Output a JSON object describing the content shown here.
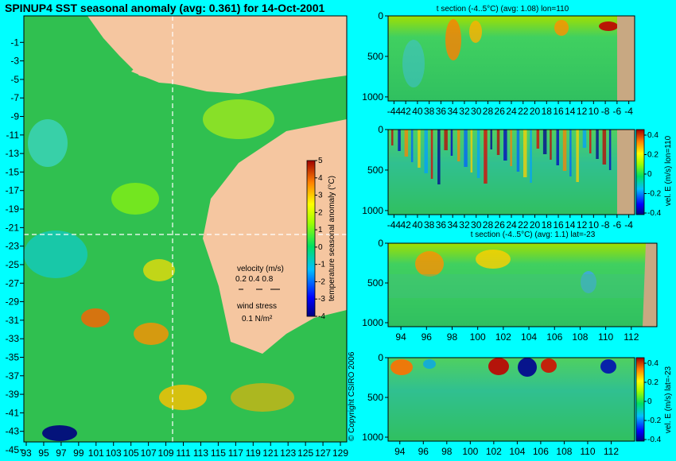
{
  "page": {
    "background": "#00ffff",
    "land_color": "#f5c6a0",
    "panel_land_color": "#c8a882",
    "copyright": "© Copyright CSIRO 2006"
  },
  "chart_data": [
    {
      "type": "heatmap",
      "title": "SPINUP4 SST seasonal anomaly (avg: 0.361) for 14-Oct-2001",
      "x_ticks": [
        "93",
        "95",
        "97",
        "99",
        "101",
        "103",
        "105",
        "107",
        "109",
        "111",
        "113",
        "115",
        "117",
        "119",
        "121",
        "123",
        "125",
        "127",
        "129"
      ],
      "y_ticks": [
        "-1",
        "-3",
        "-5",
        "-7",
        "-9",
        "-11",
        "-13",
        "-15",
        "-17",
        "-19",
        "-21",
        "-23",
        "-25",
        "-27",
        "-29",
        "-31",
        "-33",
        "-35",
        "-37",
        "-39",
        "-41",
        "-43",
        "-45"
      ],
      "xlim": [
        93,
        130
      ],
      "ylim": [
        -45,
        1
      ],
      "section_lon": 110,
      "section_lat": -23,
      "colorbar": {
        "label": "temperature seasonal anomaly (°C)",
        "ticks": [
          "5",
          "4",
          "3",
          "2",
          "1",
          "0",
          "-1",
          "-2",
          "-3",
          "-4"
        ],
        "range": [
          -4,
          5
        ]
      },
      "legend": {
        "velocity_label": "velocity (m/s)",
        "velocity_scale": "0.2 0.4 0.8",
        "wind_label": "wind stress",
        "wind_scale": "0.1 N/m²"
      }
    },
    {
      "type": "heatmap",
      "title": "t section (-4..5°C) (avg: 1.08) lon=110",
      "x_ticks": [
        "-44",
        "42",
        "40",
        "38",
        "36",
        "34",
        "32",
        "30",
        "28",
        "26",
        "24",
        "22",
        "20",
        "18",
        "16",
        "14",
        "12",
        "10",
        "-8",
        "-6",
        "-4"
      ],
      "y_ticks": [
        "0",
        "500",
        "1000"
      ],
      "xlim": [
        -45,
        -3
      ],
      "ylim": [
        1050,
        0
      ]
    },
    {
      "type": "heatmap",
      "title": "",
      "x_ticks": [
        "-44",
        "42",
        "40",
        "38",
        "36",
        "34",
        "32",
        "30",
        "28",
        "26",
        "24",
        "22",
        "20",
        "18",
        "16",
        "14",
        "12",
        "10",
        "-8",
        "-6",
        "-4"
      ],
      "y_ticks": [
        "0",
        "500",
        "1000"
      ],
      "xlim": [
        -45,
        -3
      ],
      "ylim": [
        1050,
        0
      ],
      "colorbar": {
        "label": "vel. E (m/s) lon=110",
        "ticks": [
          "0.4",
          "0.2",
          "0",
          "-0.2",
          "-0.4"
        ],
        "range": [
          -0.4,
          0.4
        ]
      }
    },
    {
      "type": "heatmap",
      "title": "t section (-4..5°C) (avg: 1.1) lat=-23",
      "x_ticks": [
        "94",
        "96",
        "98",
        "100",
        "102",
        "104",
        "106",
        "108",
        "110",
        "112"
      ],
      "y_ticks": [
        "0",
        "500",
        "1000"
      ],
      "xlim": [
        93,
        114
      ],
      "ylim": [
        1050,
        0
      ]
    },
    {
      "type": "heatmap",
      "title": "",
      "x_ticks": [
        "94",
        "96",
        "98",
        "100",
        "102",
        "104",
        "106",
        "108",
        "110",
        "112"
      ],
      "y_ticks": [
        "0",
        "500",
        "1000"
      ],
      "xlim": [
        93,
        114
      ],
      "ylim": [
        1050,
        0
      ],
      "colorbar": {
        "label": "vel. E (m/s) lat=-23",
        "ticks": [
          "0.4",
          "0.2",
          "0",
          "-0.2",
          "-0.4"
        ],
        "range": [
          -0.4,
          0.4
        ]
      }
    }
  ]
}
